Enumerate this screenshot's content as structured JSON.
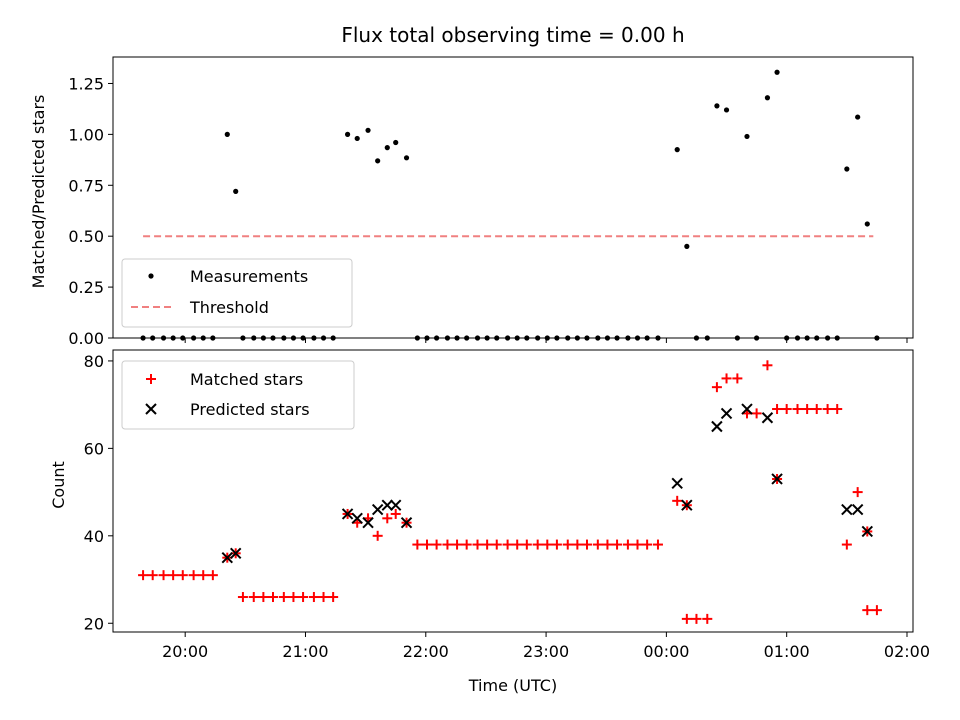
{
  "chart_data": {
    "title": "Flux total observing time = 0.00 h",
    "xlabel": "Time (UTC)",
    "x_unit": "hours since 00:00 UTC (negative = previous day)",
    "xlim": [
      -4.6,
      2.05
    ],
    "xticks": [
      -4,
      -3,
      -2,
      -1,
      0,
      1,
      2
    ],
    "xtick_labels": [
      "20:00",
      "21:00",
      "22:00",
      "23:00",
      "00:00",
      "01:00",
      "02:00"
    ],
    "panels": [
      {
        "type": "scatter",
        "ylabel": "Matched/Predicted stars",
        "ylim": [
          0,
          1.38
        ],
        "yticks": [
          0.0,
          0.25,
          0.5,
          0.75,
          1.0,
          1.25
        ],
        "ytick_labels": [
          "0.00",
          "0.25",
          "0.50",
          "0.75",
          "1.00",
          "1.25"
        ],
        "legend_position": "lower-left",
        "series": [
          {
            "name": "Measurements",
            "marker": "dot",
            "color": "#000000",
            "points": [
              [
                -4.35,
                0
              ],
              [
                -4.27,
                0
              ],
              [
                -4.18,
                0
              ],
              [
                -4.1,
                0
              ],
              [
                -4.02,
                0
              ],
              [
                -3.93,
                0
              ],
              [
                -3.85,
                0
              ],
              [
                -3.77,
                0
              ],
              [
                -3.65,
                1.0
              ],
              [
                -3.58,
                0.72
              ],
              [
                -3.52,
                0
              ],
              [
                -3.43,
                0
              ],
              [
                -3.35,
                0
              ],
              [
                -3.27,
                0
              ],
              [
                -3.18,
                0
              ],
              [
                -3.1,
                0
              ],
              [
                -3.02,
                0
              ],
              [
                -2.93,
                0
              ],
              [
                -2.85,
                0
              ],
              [
                -2.77,
                0
              ],
              [
                -2.65,
                1.0
              ],
              [
                -2.57,
                0.98
              ],
              [
                -2.48,
                1.02
              ],
              [
                -2.4,
                0.87
              ],
              [
                -2.32,
                0.935
              ],
              [
                -2.25,
                0.96
              ],
              [
                -2.16,
                0.885
              ],
              [
                -2.07,
                0
              ],
              [
                -1.99,
                0
              ],
              [
                -1.91,
                0
              ],
              [
                -1.82,
                0
              ],
              [
                -1.74,
                0
              ],
              [
                -1.66,
                0
              ],
              [
                -1.57,
                0
              ],
              [
                -1.49,
                0
              ],
              [
                -1.41,
                0
              ],
              [
                -1.32,
                0
              ],
              [
                -1.24,
                0
              ],
              [
                -1.16,
                0
              ],
              [
                -1.07,
                0
              ],
              [
                -0.99,
                0
              ],
              [
                -0.91,
                0
              ],
              [
                -0.82,
                0
              ],
              [
                -0.74,
                0
              ],
              [
                -0.66,
                0
              ],
              [
                -0.57,
                0
              ],
              [
                -0.49,
                0
              ],
              [
                -0.41,
                0
              ],
              [
                -0.32,
                0
              ],
              [
                -0.24,
                0
              ],
              [
                -0.16,
                0
              ],
              [
                -0.07,
                0
              ],
              [
                0.09,
                0.925
              ],
              [
                0.17,
                0.45
              ],
              [
                0.25,
                0
              ],
              [
                0.34,
                0
              ],
              [
                0.42,
                1.14
              ],
              [
                0.5,
                1.12
              ],
              [
                0.59,
                0
              ],
              [
                0.67,
                0.99
              ],
              [
                0.75,
                0
              ],
              [
                0.84,
                1.18
              ],
              [
                0.92,
                1.305
              ],
              [
                1.0,
                0
              ],
              [
                1.09,
                0
              ],
              [
                1.17,
                0
              ],
              [
                1.25,
                0
              ],
              [
                1.34,
                0
              ],
              [
                1.42,
                0
              ],
              [
                1.5,
                0.83
              ],
              [
                1.59,
                1.085
              ],
              [
                1.67,
                0.56
              ],
              [
                1.75,
                0
              ]
            ]
          },
          {
            "name": "Threshold",
            "style": "dashed",
            "color": "#f08080",
            "points": [
              [
                -4.35,
                0.5
              ],
              [
                1.72,
                0.5
              ]
            ]
          }
        ]
      },
      {
        "type": "scatter",
        "ylabel": "Count",
        "ylim": [
          18,
          82.5
        ],
        "yticks": [
          20,
          40,
          60,
          80
        ],
        "ytick_labels": [
          "20",
          "40",
          "60",
          "80"
        ],
        "legend_position": "top-left",
        "series": [
          {
            "name": "Matched stars",
            "marker": "plus",
            "color": "#ff0000",
            "points": [
              [
                -4.35,
                31
              ],
              [
                -4.27,
                31
              ],
              [
                -4.18,
                31
              ],
              [
                -4.1,
                31
              ],
              [
                -4.02,
                31
              ],
              [
                -3.93,
                31
              ],
              [
                -3.85,
                31
              ],
              [
                -3.77,
                31
              ],
              [
                -3.65,
                35
              ],
              [
                -3.58,
                36
              ],
              [
                -3.52,
                26
              ],
              [
                -3.43,
                26
              ],
              [
                -3.35,
                26
              ],
              [
                -3.27,
                26
              ],
              [
                -3.18,
                26
              ],
              [
                -3.1,
                26
              ],
              [
                -3.02,
                26
              ],
              [
                -2.93,
                26
              ],
              [
                -2.85,
                26
              ],
              [
                -2.77,
                26
              ],
              [
                -2.65,
                45
              ],
              [
                -2.57,
                43
              ],
              [
                -2.48,
                44
              ],
              [
                -2.4,
                40
              ],
              [
                -2.32,
                44
              ],
              [
                -2.25,
                45
              ],
              [
                -2.16,
                43
              ],
              [
                -2.07,
                38
              ],
              [
                -1.99,
                38
              ],
              [
                -1.91,
                38
              ],
              [
                -1.82,
                38
              ],
              [
                -1.74,
                38
              ],
              [
                -1.66,
                38
              ],
              [
                -1.57,
                38
              ],
              [
                -1.49,
                38
              ],
              [
                -1.41,
                38
              ],
              [
                -1.32,
                38
              ],
              [
                -1.24,
                38
              ],
              [
                -1.16,
                38
              ],
              [
                -1.07,
                38
              ],
              [
                -0.99,
                38
              ],
              [
                -0.91,
                38
              ],
              [
                -0.82,
                38
              ],
              [
                -0.74,
                38
              ],
              [
                -0.66,
                38
              ],
              [
                -0.57,
                38
              ],
              [
                -0.49,
                38
              ],
              [
                -0.41,
                38
              ],
              [
                -0.32,
                38
              ],
              [
                -0.24,
                38
              ],
              [
                -0.16,
                38
              ],
              [
                -0.07,
                38
              ],
              [
                0.09,
                48
              ],
              [
                0.17,
                47
              ],
              [
                0.17,
                21
              ],
              [
                0.25,
                21
              ],
              [
                0.34,
                21
              ],
              [
                0.42,
                74
              ],
              [
                0.5,
                76
              ],
              [
                0.59,
                76
              ],
              [
                0.67,
                68
              ],
              [
                0.75,
                68
              ],
              [
                0.84,
                79
              ],
              [
                0.92,
                53
              ],
              [
                0.92,
                69
              ],
              [
                1.0,
                69
              ],
              [
                1.09,
                69
              ],
              [
                1.17,
                69
              ],
              [
                1.25,
                69
              ],
              [
                1.34,
                69
              ],
              [
                1.42,
                69
              ],
              [
                1.5,
                38
              ],
              [
                1.59,
                50
              ],
              [
                1.67,
                41
              ],
              [
                1.67,
                23
              ],
              [
                1.75,
                23
              ]
            ]
          },
          {
            "name": "Predicted stars",
            "marker": "x",
            "color": "#000000",
            "points": [
              [
                -3.65,
                35
              ],
              [
                -3.58,
                36
              ],
              [
                -2.65,
                45
              ],
              [
                -2.57,
                44
              ],
              [
                -2.48,
                43
              ],
              [
                -2.4,
                46
              ],
              [
                -2.32,
                47
              ],
              [
                -2.25,
                47
              ],
              [
                -2.16,
                43
              ],
              [
                0.09,
                52
              ],
              [
                0.17,
                47
              ],
              [
                0.42,
                65
              ],
              [
                0.5,
                68
              ],
              [
                0.67,
                69
              ],
              [
                0.84,
                67
              ],
              [
                0.92,
                53
              ],
              [
                1.5,
                46
              ],
              [
                1.59,
                46
              ],
              [
                1.67,
                41
              ]
            ]
          }
        ]
      }
    ]
  }
}
